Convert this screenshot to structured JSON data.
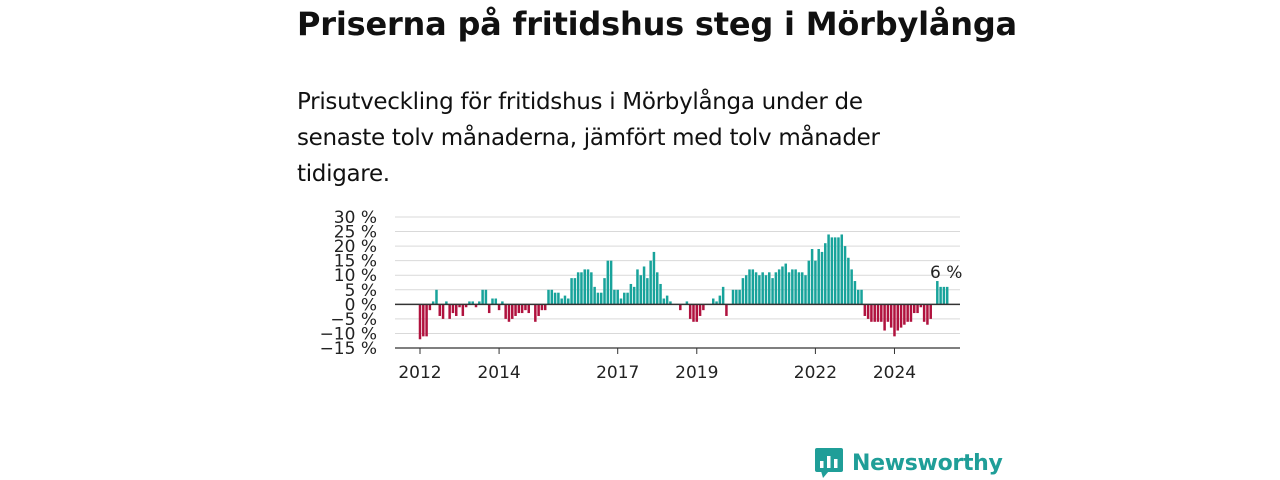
{
  "title": "Priserna på fritidshus steg i Mörbylånga",
  "subtitle": "Prisutveckling för fritidshus i Mörbylånga under de senaste tolv månaderna, jämfört med tolv månader tidigare.",
  "brand": {
    "name": "Newsworthy",
    "icon": "newsworthy-logo-icon",
    "color": "#1f9e98"
  },
  "colors": {
    "positive": "#18a39b",
    "negative": "#b0123e",
    "grid": "#d9d9d9",
    "axis": "#333333"
  },
  "chart_data": {
    "type": "bar",
    "title": "",
    "xlabel": "",
    "ylabel": "",
    "ylim": [
      -15,
      30
    ],
    "yticks": [
      30,
      25,
      20,
      15,
      10,
      5,
      0,
      -5,
      -10,
      -15
    ],
    "ytick_labels": [
      "30 %",
      "25 %",
      "20 %",
      "15 %",
      "10 %",
      "5 %",
      "0 %",
      "−5 %",
      "−10 %",
      "−15 %"
    ],
    "xticks": [
      "2012",
      "2014",
      "2017",
      "2019",
      "2022",
      "2024"
    ],
    "grid": true,
    "annotation": {
      "text": "6 %",
      "value": 6
    },
    "period_start": "2012-01",
    "period_end": "2025-03",
    "values": [
      -12,
      -11,
      -11,
      -2,
      1,
      5,
      -4,
      -5,
      1,
      -5,
      -3,
      -4,
      -1,
      -4,
      -1,
      1,
      1,
      -1,
      1,
      5,
      5,
      -3,
      2,
      2,
      -2,
      1,
      -5,
      -6,
      -5,
      -4,
      -3,
      -3,
      -2,
      -3,
      0,
      -6,
      -4,
      -2,
      -2,
      5,
      5,
      4,
      4,
      2,
      3,
      2,
      9,
      9,
      11,
      11,
      12,
      12,
      11,
      6,
      4,
      4,
      9,
      15,
      15,
      5,
      5,
      2,
      4,
      4,
      7,
      6,
      12,
      10,
      13,
      9,
      15,
      18,
      11,
      7,
      2,
      3,
      1,
      0,
      0,
      -2,
      0,
      1,
      -5,
      -6,
      -6,
      -4,
      -2,
      0,
      0,
      2,
      1,
      3,
      6,
      -4,
      0,
      5,
      5,
      5,
      9,
      10,
      12,
      12,
      11,
      10,
      11,
      10,
      11,
      9,
      11,
      12,
      13,
      14,
      11,
      12,
      12,
      11,
      11,
      10,
      15,
      19,
      15,
      19,
      18,
      21,
      24,
      23,
      23,
      23,
      24,
      20,
      16,
      12,
      8,
      5,
      5,
      -4,
      -5,
      -6,
      -6,
      -6,
      -6,
      -9,
      -6,
      -8,
      -11,
      -9,
      -8,
      -7,
      -6,
      -6,
      -3,
      -3,
      -1,
      -6,
      -7,
      -5,
      0,
      8,
      6,
      6,
      6
    ]
  }
}
